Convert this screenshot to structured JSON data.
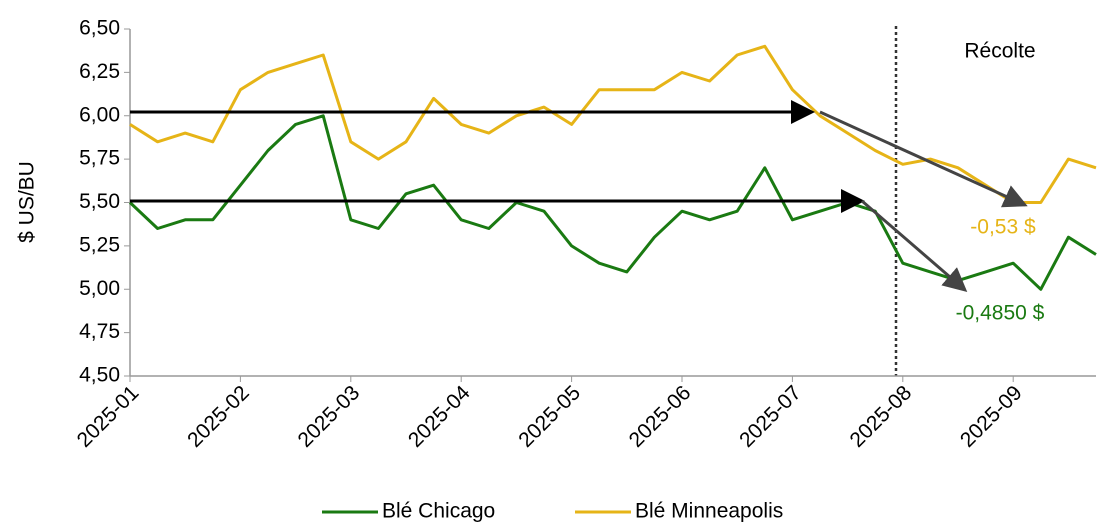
{
  "chart_data": {
    "type": "line",
    "y_label": "$ US/BU",
    "categories": [
      "2025-01",
      null,
      null,
      null,
      "2025-02",
      null,
      null,
      null,
      "2025-03",
      null,
      null,
      null,
      "2025-04",
      null,
      null,
      null,
      "2025-05",
      null,
      null,
      null,
      "2025-06",
      null,
      null,
      null,
      "2025-07",
      null,
      null,
      null,
      "2025-08",
      null,
      null,
      null,
      "2025-09",
      null,
      null,
      null
    ],
    "series": [
      {
        "name": "Blé Chicago",
        "color": "#1a7a12",
        "values": [
          5.5,
          5.35,
          5.4,
          5.4,
          5.6,
          5.8,
          5.95,
          6.0,
          5.4,
          5.35,
          5.55,
          5.6,
          5.4,
          5.35,
          5.5,
          5.45,
          5.25,
          5.15,
          5.1,
          5.3,
          5.45,
          5.4,
          5.45,
          5.7,
          5.4,
          5.45,
          5.5,
          5.45,
          5.15,
          5.1,
          5.05,
          5.1,
          5.15,
          5.0,
          5.3,
          5.2
        ]
      },
      {
        "name": "Blé Minneapolis",
        "color": "#e6b417",
        "values": [
          5.95,
          5.85,
          5.9,
          5.85,
          6.15,
          6.25,
          6.3,
          6.35,
          5.85,
          5.75,
          5.85,
          6.1,
          5.95,
          5.9,
          6.0,
          6.05,
          5.95,
          6.15,
          6.15,
          6.15,
          6.25,
          6.2,
          6.35,
          6.4,
          6.15,
          6.0,
          5.9,
          5.8,
          5.72,
          5.75,
          5.7,
          5.6,
          5.5,
          5.5,
          5.75,
          5.7
        ]
      }
    ],
    "ylim": [
      4.5,
      6.5
    ],
    "yticks": [
      {
        "value": 4.5,
        "label": "4,50"
      },
      {
        "value": 4.75,
        "label": "4,75"
      },
      {
        "value": 5.0,
        "label": "5,00"
      },
      {
        "value": 5.25,
        "label": "5,25"
      },
      {
        "value": 5.5,
        "label": "5,50"
      },
      {
        "value": 5.75,
        "label": "5,75"
      },
      {
        "value": 6.0,
        "label": "6,00"
      },
      {
        "value": 6.25,
        "label": "6,25"
      },
      {
        "value": 6.5,
        "label": "6,50"
      }
    ],
    "annotations": [
      "Récolte",
      "-0,53 $",
      "-0,4850 $"
    ],
    "grid": false
  }
}
